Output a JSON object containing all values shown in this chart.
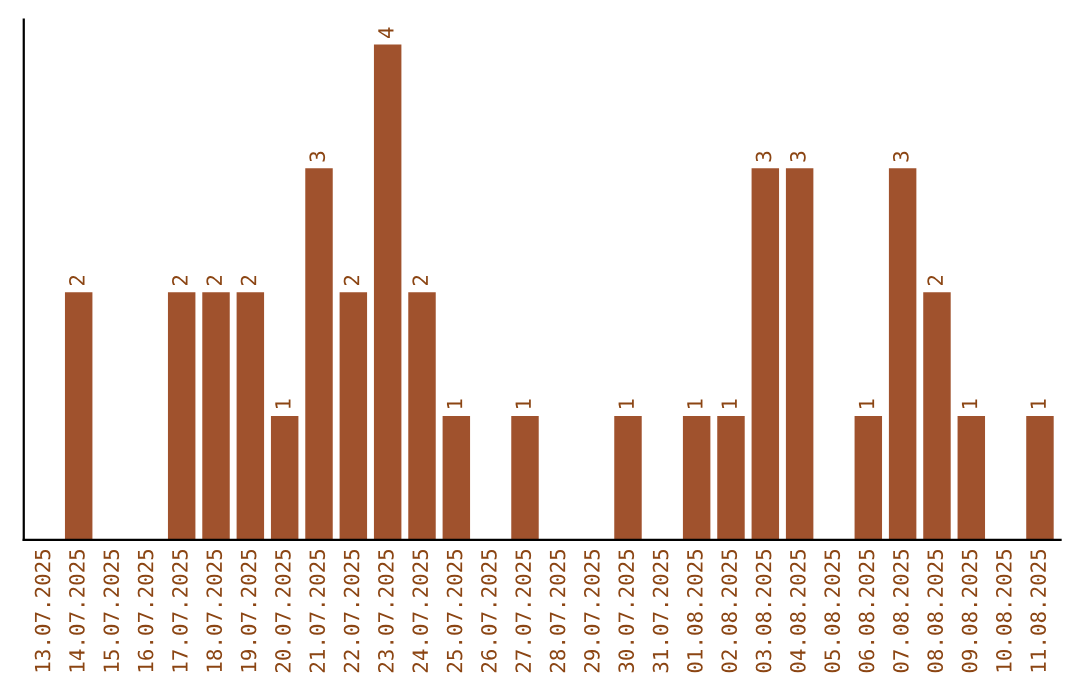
{
  "chart_data": {
    "type": "bar",
    "categories": [
      "13.07.2025",
      "14.07.2025",
      "15.07.2025",
      "16.07.2025",
      "17.07.2025",
      "18.07.2025",
      "19.07.2025",
      "20.07.2025",
      "21.07.2025",
      "22.07.2025",
      "23.07.2025",
      "24.07.2025",
      "25.07.2025",
      "26.07.2025",
      "27.07.2025",
      "28.07.2025",
      "29.07.2025",
      "30.07.2025",
      "31.07.2025",
      "01.08.2025",
      "02.08.2025",
      "03.08.2025",
      "04.08.2025",
      "05.08.2025",
      "06.08.2025",
      "07.08.2025",
      "08.08.2025",
      "09.08.2025",
      "10.08.2025",
      "11.08.2025"
    ],
    "values": [
      0,
      2,
      0,
      0,
      2,
      2,
      2,
      1,
      3,
      2,
      4,
      2,
      1,
      0,
      1,
      0,
      0,
      1,
      0,
      1,
      1,
      3,
      3,
      0,
      1,
      3,
      2,
      1,
      0,
      1
    ],
    "value_labels": [
      null,
      "2",
      null,
      null,
      "2",
      "2",
      "2",
      "1",
      "3",
      "2",
      "4",
      "2",
      "1",
      null,
      "1",
      null,
      null,
      "1",
      null,
      "1",
      "1",
      "3",
      "3",
      null,
      "1",
      "3",
      "2",
      "1",
      null,
      "1"
    ],
    "color": "#a0522d",
    "tick_labels": "x",
    "grid": false
  }
}
